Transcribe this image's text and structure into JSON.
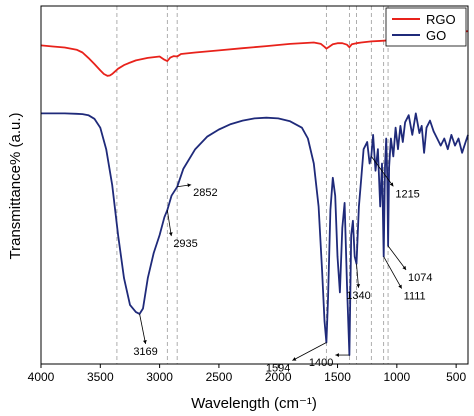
{
  "chart_data": {
    "type": "line",
    "xlabel": "Wavelength (cm⁻¹)",
    "ylabel": "Transmittance% (a.u.)",
    "xlim": [
      4000,
      400
    ],
    "ylim": [
      0,
      100
    ],
    "x_ticks": [
      "4000",
      "3500",
      "3000",
      "2500",
      "2000",
      "1500",
      "1000",
      "500"
    ],
    "x_tick_values": [
      4000,
      3500,
      3000,
      2500,
      2000,
      1500,
      1000,
      500
    ],
    "legend_position": "top-right",
    "reference_lines": [
      3360,
      2935,
      2852,
      1594,
      1400,
      1340,
      1215,
      1111,
      1074
    ],
    "series": [
      {
        "name": "RGO",
        "color": "#e8221b",
        "x": [
          4000,
          3900,
          3800,
          3700,
          3650,
          3600,
          3550,
          3500,
          3470,
          3440,
          3420,
          3400,
          3380,
          3350,
          3300,
          3250,
          3200,
          3100,
          3000,
          2960,
          2935,
          2910,
          2880,
          2852,
          2820,
          2700,
          2500,
          2300,
          2100,
          1900,
          1700,
          1640,
          1610,
          1594,
          1570,
          1540,
          1500,
          1460,
          1420,
          1400,
          1380,
          1340,
          1300,
          1215,
          1111,
          1074,
          1000,
          900,
          800,
          700,
          600,
          500,
          450,
          400
        ],
        "y": [
          89.0,
          88.7,
          88.4,
          87.8,
          87.0,
          85.5,
          83.8,
          82.0,
          81.0,
          80.5,
          80.6,
          81.0,
          81.6,
          82.5,
          83.5,
          84.2,
          84.8,
          85.5,
          85.9,
          85.0,
          84.6,
          85.6,
          86.0,
          85.9,
          86.6,
          87.0,
          87.6,
          88.2,
          88.8,
          89.4,
          89.8,
          89.4,
          88.6,
          88.1,
          88.6,
          89.3,
          89.6,
          89.6,
          89.2,
          88.5,
          89.3,
          89.6,
          89.8,
          90.1,
          90.3,
          90.4,
          90.6,
          91.0,
          91.4,
          91.8,
          92.2,
          92.6,
          92.8,
          93.0
        ]
      },
      {
        "name": "GO",
        "color": "#1f2a7a",
        "x": [
          4000,
          3900,
          3800,
          3700,
          3650,
          3600,
          3550,
          3500,
          3450,
          3400,
          3350,
          3300,
          3250,
          3200,
          3169,
          3140,
          3100,
          3050,
          3000,
          2960,
          2935,
          2900,
          2852,
          2800,
          2700,
          2600,
          2500,
          2400,
          2300,
          2200,
          2100,
          2000,
          1900,
          1800,
          1750,
          1700,
          1660,
          1630,
          1610,
          1594,
          1580,
          1560,
          1540,
          1520,
          1500,
          1480,
          1460,
          1440,
          1420,
          1400,
          1385,
          1370,
          1355,
          1340,
          1320,
          1300,
          1280,
          1250,
          1230,
          1215,
          1200,
          1180,
          1160,
          1140,
          1125,
          1111,
          1100,
          1090,
          1080,
          1074,
          1065,
          1050,
          1030,
          1010,
          990,
          970,
          950,
          930,
          900,
          870,
          840,
          810,
          790,
          770,
          750,
          720,
          690,
          660,
          630,
          600,
          570,
          540,
          510,
          480,
          450,
          420,
          400
        ],
        "y": [
          70.0,
          70.0,
          70.0,
          69.9,
          69.8,
          69.5,
          68.5,
          66.0,
          60.0,
          50.0,
          36.0,
          24.0,
          16.5,
          14.5,
          14.0,
          15.5,
          24.0,
          31.0,
          36.0,
          41.0,
          43.0,
          47.0,
          49.5,
          54.5,
          60.0,
          63.5,
          65.5,
          67.0,
          68.0,
          68.6,
          68.8,
          68.6,
          67.8,
          66.0,
          63.0,
          56.0,
          44.0,
          26.0,
          12.0,
          6.0,
          18.0,
          43.0,
          52.0,
          47.0,
          30.0,
          20.0,
          38.0,
          45.0,
          22.0,
          2.5,
          36.0,
          40.0,
          30.0,
          28.0,
          44.0,
          52.0,
          60.0,
          62.0,
          56.0,
          58.0,
          64.0,
          54.0,
          60.0,
          44.0,
          56.0,
          30.0,
          55.0,
          63.0,
          52.0,
          33.0,
          55.0,
          63.0,
          58.0,
          66.0,
          60.0,
          66.5,
          62.0,
          67.5,
          69.5,
          64.0,
          70.0,
          64.5,
          66.5,
          59.0,
          66.0,
          68.0,
          65.0,
          63.0,
          61.0,
          63.0,
          60.0,
          64.0,
          61.0,
          63.0,
          59.0,
          62.0,
          64.0
        ]
      }
    ],
    "annotations": [
      {
        "label": "3169",
        "x": 3169,
        "y": 14.0
      },
      {
        "label": "2935",
        "x": 2935,
        "y": 43.0
      },
      {
        "label": "2852",
        "x": 2852,
        "y": 49.5
      },
      {
        "label": "1594",
        "x": 1594,
        "y": 6.0
      },
      {
        "label": "1400",
        "x": 1400,
        "y": 2.5
      },
      {
        "label": "1340",
        "x": 1340,
        "y": 28.0
      },
      {
        "label": "1215",
        "x": 1215,
        "y": 58.0
      },
      {
        "label": "1111",
        "x": 1111,
        "y": 30.0
      },
      {
        "label": "1074",
        "x": 1074,
        "y": 33.0
      }
    ]
  }
}
